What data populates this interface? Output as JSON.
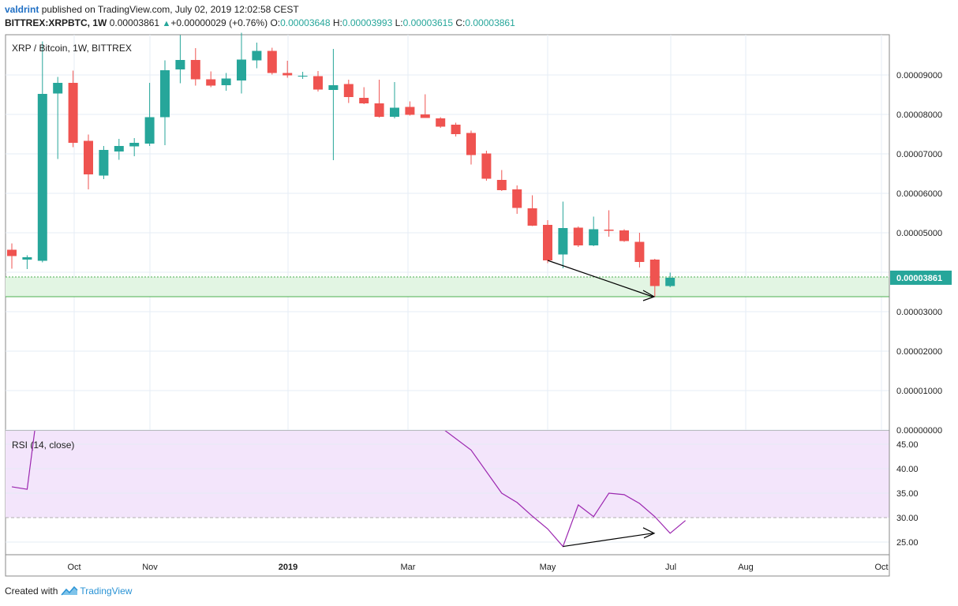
{
  "header": {
    "user": "valdrint",
    "published": "published on TradingView.com, July 02, 2019 12:02:58 CEST",
    "symbol": "BITTREX:XRPBTC, 1W",
    "last": "0.00003861",
    "change": "+0.00000029 (+0.76%)",
    "o_label": "O:",
    "o": "0.00003648",
    "h_label": "H:",
    "h": "0.00003993",
    "l_label": "L:",
    "l": "0.00003615",
    "c_label": "C:",
    "c": "0.00003861"
  },
  "footer": {
    "created_with": "Created with",
    "brand": "TradingView"
  },
  "colors": {
    "up": "#26a69a",
    "down": "#ef5350",
    "rsi_line": "#9c27b0",
    "rsi_band": "#f3e5fb",
    "support": "#4caf50",
    "grid": "#e6ecf5"
  },
  "chart_data": [
    {
      "type": "candlestick",
      "title": "XRP / Bitcoin, 1W, BITTREX",
      "ylim": [
        0,
        1.01e-05
      ],
      "y_ticks": [
        "0.00009000",
        "0.00008000",
        "0.00007000",
        "0.00006000",
        "0.00005000",
        "0.00003000",
        "0.00002000",
        "0.00001000",
        "0.00000000"
      ],
      "last_price_label": "0.00003861",
      "support_zone": [
        3.38e-05,
        3.88e-05
      ],
      "x_labels": [
        "Oct",
        "Nov",
        "2019",
        "Mar",
        "May",
        "Jul",
        "Aug",
        "Oct"
      ],
      "candles": [
        {
          "o": 4.57e-05,
          "h": 4.73e-05,
          "l": 4.09e-05,
          "c": 4.41e-05
        },
        {
          "o": 4.32e-05,
          "h": 4.43e-05,
          "l": 4.08e-05,
          "c": 4.38e-05
        },
        {
          "o": 4.29e-05,
          "h": 9.85e-05,
          "l": 4.25e-05,
          "c": 8.52e-05
        },
        {
          "o": 8.53e-05,
          "h": 8.95e-05,
          "l": 6.87e-05,
          "c": 8.8e-05
        },
        {
          "o": 8.8e-05,
          "h": 9.11e-05,
          "l": 7.17e-05,
          "c": 7.28e-05
        },
        {
          "o": 7.33e-05,
          "h": 7.49e-05,
          "l": 6.1e-05,
          "c": 6.48e-05
        },
        {
          "o": 6.45e-05,
          "h": 7.2e-05,
          "l": 6.36e-05,
          "c": 7.1e-05
        },
        {
          "o": 7.06e-05,
          "h": 7.38e-05,
          "l": 6.85e-05,
          "c": 7.2e-05
        },
        {
          "o": 7.19e-05,
          "h": 7.4e-05,
          "l": 6.94e-05,
          "c": 7.28e-05
        },
        {
          "o": 7.26e-05,
          "h": 8.8e-05,
          "l": 7.2e-05,
          "c": 7.93e-05
        },
        {
          "o": 7.93e-05,
          "h": 9.37e-05,
          "l": 7.22e-05,
          "c": 9.12e-05
        },
        {
          "o": 9.14e-05,
          "h": 0.0001001,
          "l": 8.79e-05,
          "c": 9.38e-05
        },
        {
          "o": 9.38e-05,
          "h": 9.68e-05,
          "l": 8.73e-05,
          "c": 8.89e-05
        },
        {
          "o": 8.89e-05,
          "h": 9.09e-05,
          "l": 8.69e-05,
          "c": 8.73e-05
        },
        {
          "o": 8.74e-05,
          "h": 9.05e-05,
          "l": 8.6e-05,
          "c": 8.91e-05
        },
        {
          "o": 8.86e-05,
          "h": 0.0001007,
          "l": 8.53e-05,
          "c": 9.39e-05
        },
        {
          "o": 9.37e-05,
          "h": 9.82e-05,
          "l": 9.17e-05,
          "c": 9.61e-05
        },
        {
          "o": 9.61e-05,
          "h": 9.69e-05,
          "l": 9.01e-05,
          "c": 9.05e-05
        },
        {
          "o": 9.05e-05,
          "h": 9.36e-05,
          "l": 8.93e-05,
          "c": 8.99e-05
        },
        {
          "o": 8.98e-05,
          "h": 9.08e-05,
          "l": 8.9e-05,
          "c": 8.98e-05
        },
        {
          "o": 8.97e-05,
          "h": 9.1e-05,
          "l": 8.58e-05,
          "c": 8.63e-05
        },
        {
          "o": 8.62e-05,
          "h": 9.66e-05,
          "l": 6.84e-05,
          "c": 8.74e-05
        },
        {
          "o": 8.77e-05,
          "h": 8.88e-05,
          "l": 8.29e-05,
          "c": 8.44e-05
        },
        {
          "o": 8.42e-05,
          "h": 8.69e-05,
          "l": 8.26e-05,
          "c": 8.28e-05
        },
        {
          "o": 8.28e-05,
          "h": 8.88e-05,
          "l": 7.92e-05,
          "c": 7.94e-05
        },
        {
          "o": 7.94e-05,
          "h": 8.82e-05,
          "l": 7.9e-05,
          "c": 8.17e-05
        },
        {
          "o": 8.19e-05,
          "h": 8.33e-05,
          "l": 7.97e-05,
          "c": 7.99e-05
        },
        {
          "o": 8e-05,
          "h": 8.51e-05,
          "l": 7.91e-05,
          "c": 7.91e-05
        },
        {
          "o": 7.9e-05,
          "h": 7.93e-05,
          "l": 7.66e-05,
          "c": 7.69e-05
        },
        {
          "o": 7.74e-05,
          "h": 7.79e-05,
          "l": 7.44e-05,
          "c": 7.5e-05
        },
        {
          "o": 7.53e-05,
          "h": 7.59e-05,
          "l": 6.73e-05,
          "c": 6.97e-05
        },
        {
          "o": 7.01e-05,
          "h": 7.08e-05,
          "l": 6.32e-05,
          "c": 6.37e-05
        },
        {
          "o": 6.34e-05,
          "h": 6.59e-05,
          "l": 6.06e-05,
          "c": 6.08e-05
        },
        {
          "o": 6.1e-05,
          "h": 6.2e-05,
          "l": 5.48e-05,
          "c": 5.63e-05
        },
        {
          "o": 5.62e-05,
          "h": 5.95e-05,
          "l": 5.17e-05,
          "c": 5.18e-05
        },
        {
          "o": 5.2e-05,
          "h": 5.32e-05,
          "l": 4.23e-05,
          "c": 4.3e-05
        },
        {
          "o": 4.45e-05,
          "h": 5.79e-05,
          "l": 4.1e-05,
          "c": 5.12e-05
        },
        {
          "o": 5.13e-05,
          "h": 5.16e-05,
          "l": 4.64e-05,
          "c": 4.68e-05
        },
        {
          "o": 4.68e-05,
          "h": 5.41e-05,
          "l": 4.66e-05,
          "c": 5.09e-05
        },
        {
          "o": 5.08e-05,
          "h": 5.57e-05,
          "l": 4.9e-05,
          "c": 5.05e-05
        },
        {
          "o": 5.06e-05,
          "h": 5.09e-05,
          "l": 4.77e-05,
          "c": 4.79e-05
        },
        {
          "o": 4.77e-05,
          "h": 5e-05,
          "l": 4.12e-05,
          "c": 4.26e-05
        },
        {
          "o": 4.32e-05,
          "h": 4.34e-05,
          "l": 3.38e-05,
          "c": 3.65e-05
        },
        {
          "o": 3.65e-05,
          "h": 3.99e-05,
          "l": 3.62e-05,
          "c": 3.86e-05
        }
      ]
    },
    {
      "type": "line",
      "title": "RSI (14, close)",
      "ylim": [
        21.5,
        48.5
      ],
      "y_ticks": [
        "45.00",
        "40.00",
        "35.00",
        "30.00",
        "25.00"
      ],
      "oversold_level": 30,
      "points": [
        {
          "i": 0,
          "v": 36.3
        },
        {
          "i": 1,
          "v": 35.8
        },
        {
          "i": 2,
          "v": 60
        },
        {
          "i": 28,
          "v": 48.5
        },
        {
          "i": 30,
          "v": 43.8
        },
        {
          "i": 32,
          "v": 35.0
        },
        {
          "i": 33,
          "v": 33.1
        },
        {
          "i": 34,
          "v": 30.3
        },
        {
          "i": 35,
          "v": 27.7
        },
        {
          "i": 36,
          "v": 24.1
        },
        {
          "i": 37,
          "v": 32.6
        },
        {
          "i": 38,
          "v": 30.2
        },
        {
          "i": 39,
          "v": 35.0
        },
        {
          "i": 40,
          "v": 34.7
        },
        {
          "i": 41,
          "v": 32.9
        },
        {
          "i": 42,
          "v": 30.2
        },
        {
          "i": 43,
          "v": 26.8
        },
        {
          "i": 44,
          "v": 29.4
        }
      ]
    }
  ]
}
